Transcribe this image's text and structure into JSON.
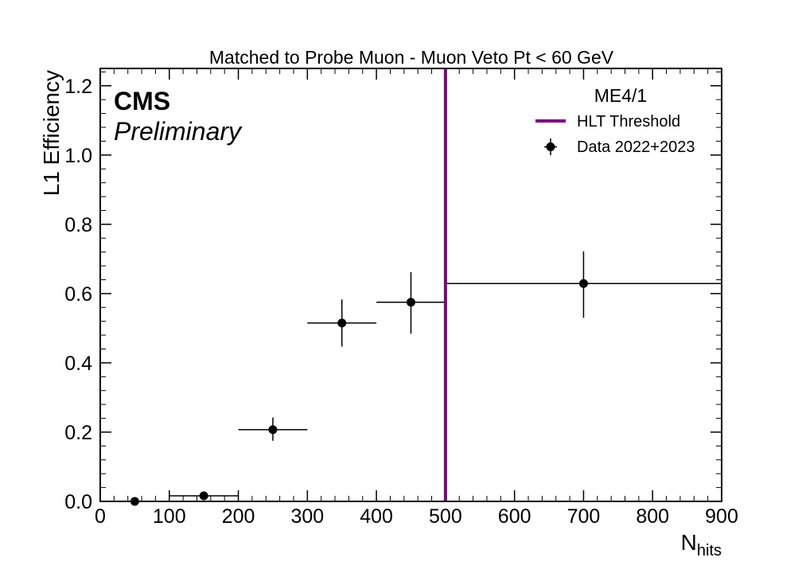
{
  "chart_data": {
    "type": "scatter",
    "title": "Matched to Probe Muon - Muon Veto Pt < 60 GeV",
    "xlabel_main": "N",
    "xlabel_sub": "hits",
    "ylabel": "L1 Efficiency",
    "xlim": [
      0,
      900
    ],
    "ylim": [
      0,
      1.25
    ],
    "x_ticks": [
      0,
      100,
      200,
      300,
      400,
      500,
      600,
      700,
      800,
      900
    ],
    "x_tick_labels": [
      "0",
      "100",
      "200",
      "300",
      "400",
      "500",
      "600",
      "700",
      "800",
      "900"
    ],
    "y_ticks": [
      0,
      0.2,
      0.4,
      0.6,
      0.8,
      1.0,
      1.2
    ],
    "y_tick_labels": [
      "0.0",
      "0.2",
      "0.4",
      "0.6",
      "0.8",
      "1.0",
      "1.2"
    ],
    "experiment_label": "CMS",
    "status_label": "Preliminary",
    "legend": {
      "title": "ME4/1",
      "placement": "top-right",
      "entries": [
        "HLT Threshold",
        "Data 2022+2023"
      ]
    },
    "threshold": {
      "name": "HLT Threshold",
      "x": 500,
      "color": "#800080"
    },
    "series": [
      {
        "name": "Data 2022+2023",
        "color": "#000000",
        "points": [
          {
            "x": 50,
            "xlow": 0,
            "xhigh": 100,
            "y": 0.0,
            "ylow": 0.0,
            "yhigh": 0.004
          },
          {
            "x": 150,
            "xlow": 100,
            "xhigh": 200,
            "y": 0.016,
            "ylow": 0.008,
            "yhigh": 0.027
          },
          {
            "x": 250,
            "xlow": 200,
            "xhigh": 300,
            "y": 0.207,
            "ylow": 0.175,
            "yhigh": 0.242
          },
          {
            "x": 350,
            "xlow": 300,
            "xhigh": 400,
            "y": 0.515,
            "ylow": 0.447,
            "yhigh": 0.583
          },
          {
            "x": 450,
            "xlow": 400,
            "xhigh": 500,
            "y": 0.575,
            "ylow": 0.484,
            "yhigh": 0.662
          },
          {
            "x": 700,
            "xlow": 500,
            "xhigh": 900,
            "y": 0.629,
            "ylow": 0.53,
            "yhigh": 0.722
          }
        ]
      }
    ]
  }
}
